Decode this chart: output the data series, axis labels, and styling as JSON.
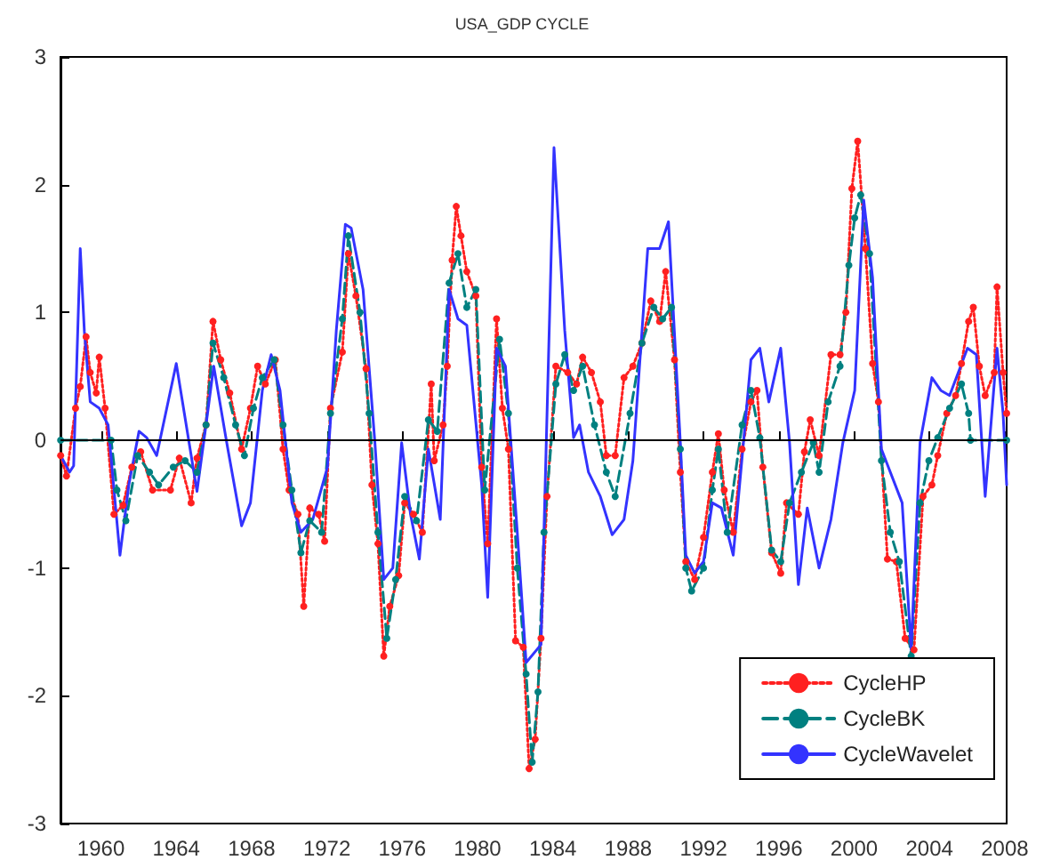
{
  "chart_data": {
    "type": "line",
    "title": "USA_GDP CYCLE",
    "xlim": [
      1957.85,
      2008.1
    ],
    "xticks": [
      1960,
      1964,
      1968,
      1972,
      1976,
      1980,
      1984,
      1988,
      1992,
      1996,
      2000,
      2004,
      2008
    ],
    "ylim": [
      -3,
      3
    ],
    "yticks": [
      -3,
      -2,
      -1,
      0,
      1,
      2,
      3
    ],
    "grid": false,
    "legend": "bottom right",
    "ref_lines": [
      {
        "axis": "y",
        "value": 0,
        "color": "#000000",
        "line_style": "solid"
      }
    ],
    "series": [
      {
        "name": "CycleHP",
        "color": "#ff2020",
        "line_style": "dotted",
        "marker": "circle",
        "x": [
          1957.86,
          1958.17,
          1958.65,
          1958.9,
          1959.21,
          1959.43,
          1959.75,
          1959.91,
          1960.22,
          1960.69,
          1961.17,
          1961.64,
          1962.11,
          1962.74,
          1963.69,
          1964.16,
          1964.79,
          1965.1,
          1965.58,
          1965.95,
          1966.36,
          1966.84,
          1967.47,
          1967.94,
          1968.32,
          1968.73,
          1969.26,
          1969.67,
          1969.99,
          1970.46,
          1970.77,
          1971.09,
          1971.56,
          1971.88,
          1972.19,
          1972.82,
          1973.14,
          1973.54,
          1974.08,
          1974.39,
          1974.71,
          1975.02,
          1975.34,
          1975.81,
          1976.13,
          1976.6,
          1977.07,
          1977.54,
          1977.7,
          1978.17,
          1978.39,
          1978.65,
          1978.87,
          1979.12,
          1979.43,
          1979.91,
          1980.22,
          1980.54,
          1981.01,
          1981.32,
          1981.64,
          1982.02,
          1982.43,
          1982.74,
          1983.06,
          1983.37,
          1983.69,
          1984.16,
          1984.79,
          1985.26,
          1985.58,
          1986.05,
          1986.52,
          1986.84,
          1987.31,
          1987.78,
          1988.25,
          1988.73,
          1989.2,
          1989.67,
          1989.99,
          1990.46,
          1990.77,
          1991.06,
          1991.53,
          1992.0,
          1992.47,
          1992.79,
          1993.1,
          1993.58,
          1994.05,
          1994.52,
          1994.84,
          1995.15,
          1995.62,
          1996.1,
          1996.41,
          1997.04,
          1997.36,
          1997.67,
          1998.14,
          1998.77,
          1999.25,
          1999.56,
          1999.88,
          2000.19,
          2000.6,
          2000.98,
          2001.29,
          2001.77,
          2002.24,
          2002.71,
          2003.18,
          2003.66,
          2004.13,
          2004.44,
          2004.92,
          2005.39,
          2005.7,
          2006.08,
          2006.33,
          2006.65,
          2006.96,
          2007.44,
          2007.59,
          2007.91,
          2008.1
        ],
        "values": [
          -0.12,
          -0.28,
          0.25,
          0.42,
          0.81,
          0.53,
          0.37,
          0.65,
          0.25,
          -0.58,
          -0.51,
          -0.21,
          -0.09,
          -0.39,
          -0.39,
          -0.14,
          -0.49,
          -0.14,
          0.12,
          0.93,
          0.63,
          0.37,
          -0.07,
          0.25,
          0.58,
          0.44,
          0.63,
          -0.07,
          -0.39,
          -0.58,
          -1.3,
          -0.53,
          -0.58,
          -0.79,
          0.25,
          0.69,
          1.46,
          1.13,
          0.56,
          -0.35,
          -0.81,
          -1.69,
          -1.3,
          -1.06,
          -0.49,
          -0.58,
          -0.72,
          0.44,
          -0.16,
          0.12,
          0.58,
          1.41,
          1.83,
          1.6,
          1.32,
          1.13,
          -0.21,
          -0.81,
          0.95,
          0.25,
          -0.07,
          -1.57,
          -1.62,
          -2.57,
          -2.34,
          -1.55,
          -0.44,
          0.58,
          0.53,
          0.44,
          0.65,
          0.53,
          0.3,
          -0.12,
          -0.12,
          0.49,
          0.58,
          0.76,
          1.09,
          0.93,
          1.32,
          0.63,
          -0.25,
          -0.95,
          -1.09,
          -0.76,
          -0.25,
          0.05,
          -0.39,
          -0.72,
          -0.07,
          0.3,
          0.39,
          -0.21,
          -0.88,
          -1.04,
          -0.49,
          -0.58,
          -0.09,
          0.16,
          -0.12,
          0.67,
          0.67,
          1.0,
          1.97,
          2.34,
          1.5,
          0.6,
          0.3,
          -0.93,
          -0.95,
          -1.55,
          -1.64,
          -0.44,
          -0.35,
          -0.12,
          0.21,
          0.35,
          0.6,
          0.93,
          1.04,
          0.58,
          0.35,
          0.53,
          1.2,
          0.53,
          0.21
        ]
      },
      {
        "name": "CycleBK",
        "color": "#008080",
        "line_style": "dashed",
        "marker": "circle",
        "x": [
          1957.86,
          1960.54,
          1960.85,
          1961.32,
          1961.95,
          1962.58,
          1963.06,
          1963.84,
          1964.47,
          1965.1,
          1965.58,
          1965.95,
          1966.52,
          1967.15,
          1967.62,
          1968.1,
          1968.57,
          1969.2,
          1969.67,
          1970.14,
          1970.62,
          1971.09,
          1971.72,
          1972.19,
          1972.82,
          1973.14,
          1973.76,
          1974.24,
          1974.71,
          1975.18,
          1975.65,
          1976.13,
          1976.76,
          1977.39,
          1977.86,
          1978.49,
          1978.96,
          1979.43,
          1979.91,
          1980.38,
          1981.17,
          1981.64,
          1982.11,
          1982.58,
          1982.9,
          1983.21,
          1983.53,
          1984.16,
          1984.63,
          1985.1,
          1985.58,
          1986.21,
          1986.84,
          1987.31,
          1988.1,
          1988.73,
          1989.36,
          1989.83,
          1990.3,
          1990.77,
          1991.06,
          1991.37,
          1992.0,
          1992.47,
          1992.79,
          1993.26,
          1994.05,
          1994.52,
          1994.99,
          1995.62,
          1996.1,
          1996.57,
          1997.2,
          1997.83,
          1998.14,
          1998.62,
          1999.25,
          1999.72,
          2000.03,
          2000.35,
          2000.82,
          2001.45,
          2001.92,
          2002.4,
          2003.03,
          2003.5,
          2003.97,
          2004.44,
          2005.07,
          2005.7,
          2006.08,
          2006.18,
          2008.1
        ],
        "values": [
          0,
          0,
          -0.39,
          -0.63,
          -0.12,
          -0.25,
          -0.35,
          -0.21,
          -0.16,
          -0.25,
          0.12,
          0.76,
          0.49,
          0.12,
          -0.12,
          0.25,
          0.49,
          0.63,
          0.12,
          -0.39,
          -0.88,
          -0.63,
          -0.72,
          0.21,
          0.95,
          1.6,
          1.0,
          0.21,
          -0.72,
          -1.55,
          -1.09,
          -0.44,
          -0.63,
          0.16,
          0.07,
          1.23,
          1.46,
          1.04,
          1.18,
          -0.39,
          0.79,
          0.21,
          -1.0,
          -1.83,
          -2.52,
          -1.97,
          -0.72,
          0.44,
          0.67,
          0.39,
          0.58,
          0.12,
          -0.25,
          -0.44,
          0.21,
          0.76,
          1.04,
          0.95,
          1.04,
          -0.07,
          -1.0,
          -1.18,
          -1.0,
          -0.39,
          -0.07,
          -0.72,
          0.12,
          0.39,
          0.02,
          -0.86,
          -0.95,
          -0.49,
          -0.25,
          -0.02,
          -0.25,
          0.3,
          0.58,
          1.37,
          1.74,
          1.92,
          1.46,
          -0.16,
          -0.72,
          -0.95,
          -1.69,
          -0.49,
          -0.16,
          0.02,
          0.25,
          0.44,
          0.21,
          0,
          0
        ]
      },
      {
        "name": "CycleWavelet",
        "color": "#3333ff",
        "line_style": "solid",
        "marker": "none",
        "x": [
          1957.86,
          1958.33,
          1958.55,
          1958.9,
          1959.12,
          1959.43,
          1959.91,
          1960.38,
          1961.01,
          1961.48,
          1962.02,
          1962.43,
          1962.96,
          1964.0,
          1965.1,
          1965.58,
          1965.99,
          1966.68,
          1967.47,
          1967.94,
          1968.57,
          1969.04,
          1969.51,
          1970.14,
          1970.62,
          1971.25,
          1972.03,
          1972.5,
          1972.98,
          1973.29,
          1973.92,
          1974.55,
          1975.02,
          1975.5,
          1975.97,
          1976.44,
          1976.91,
          1977.39,
          1978.02,
          1978.49,
          1978.96,
          1979.43,
          1980.22,
          1980.54,
          1981.01,
          1981.48,
          1982.11,
          1982.58,
          1983.37,
          1984.06,
          1984.63,
          1985.1,
          1985.42,
          1985.89,
          1986.52,
          1987.15,
          1987.78,
          1988.25,
          1989.04,
          1989.67,
          1990.14,
          1990.77,
          1991.06,
          1991.53,
          1992.0,
          1992.47,
          1992.95,
          1993.58,
          1994.52,
          1994.99,
          1995.47,
          1996.1,
          1996.57,
          1997.04,
          1997.51,
          1998.14,
          1998.77,
          1999.4,
          2000.03,
          2000.51,
          2000.98,
          2001.45,
          2002.55,
          2003.03,
          2003.5,
          2004.13,
          2004.6,
          2005.07,
          2006.02,
          2006.49,
          2006.96,
          2007.59,
          2007.91,
          2008.1
        ],
        "values": [
          -0.12,
          -0.25,
          -0.2,
          1.5,
          0.85,
          0.3,
          0.25,
          0.12,
          -0.9,
          -0.35,
          0.07,
          0.02,
          -0.12,
          0.6,
          -0.4,
          0.12,
          0.58,
          -0.02,
          -0.67,
          -0.49,
          0.39,
          0.67,
          0.39,
          -0.49,
          -0.72,
          -0.62,
          -0.21,
          0.86,
          1.69,
          1.66,
          1.18,
          -0.02,
          -1.09,
          -1.0,
          -0.02,
          -0.58,
          -0.93,
          -0.07,
          -0.62,
          1.18,
          0.95,
          0.9,
          -0.35,
          -1.23,
          0.72,
          0.58,
          -0.72,
          -1.74,
          -1.6,
          2.29,
          0.86,
          0.02,
          0.12,
          -0.25,
          -0.44,
          -0.74,
          -0.62,
          -0.16,
          1.5,
          1.5,
          1.71,
          -0.02,
          -0.9,
          -1.04,
          -0.95,
          -0.49,
          -0.53,
          -0.9,
          0.63,
          0.72,
          0.3,
          0.72,
          -0.02,
          -1.13,
          -0.53,
          -1.0,
          -0.62,
          -0.02,
          0.39,
          1.88,
          1.27,
          -0.07,
          -0.49,
          -1.64,
          -0.02,
          0.49,
          0.39,
          0.35,
          0.72,
          0.67,
          -0.44,
          0.72,
          0.21,
          -0.35
        ]
      }
    ]
  }
}
